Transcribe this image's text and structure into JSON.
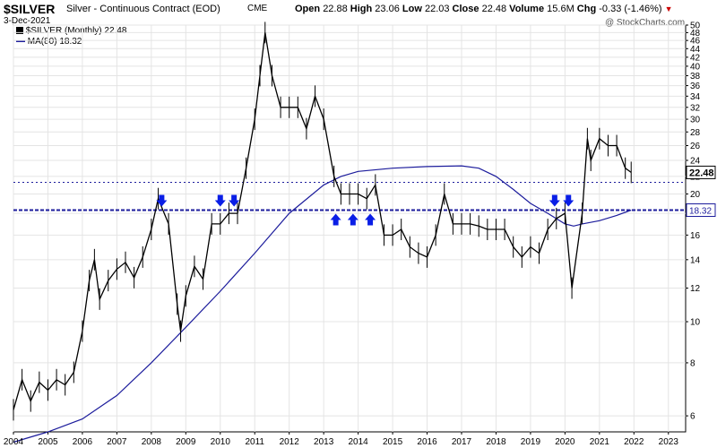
{
  "header": {
    "symbol": "$SILVER",
    "description": "Silver - Continuous Contract (EOD)",
    "exchange": "CME",
    "date": "3-Dec-2021",
    "copyright": "@ StockCharts.com",
    "stats": {
      "open_label": "Open",
      "open": "22.88",
      "high_label": "High",
      "high": "23.06",
      "low_label": "Low",
      "low": "22.03",
      "close_label": "Close",
      "close": "22.48",
      "volume_label": "Volume",
      "volume": "15.6M",
      "chg_label": "Chg",
      "chg": "-0.33 (-1.46%)"
    }
  },
  "legend": {
    "price": "$SILVER (Monthly) 22.48",
    "ma": "MA(80) 18.32"
  },
  "colors": {
    "price": "#000000",
    "ma": "#1c1c9c",
    "arrow": "#0a1ee6",
    "hline": "#1c1c9c",
    "close_tag_bg": "#ffffff",
    "ma_tag_bg": "#ffffff"
  },
  "chart_data": {
    "type": "line",
    "title": "$SILVER",
    "xlabel": "",
    "ylabel": "",
    "y_scale": "log",
    "ylim": [
      5.5,
      50
    ],
    "xlim": [
      2004.0,
      2023.5
    ],
    "x_ticks": [
      "2004",
      "2005",
      "2006",
      "2007",
      "2008",
      "2009",
      "2010",
      "2011",
      "2012",
      "2013",
      "2014",
      "2015",
      "2016",
      "2017",
      "2018",
      "2019",
      "2020",
      "2021",
      "2022",
      "2023"
    ],
    "y_ticks": [
      6,
      8,
      10,
      12,
      14,
      16,
      18,
      20,
      22,
      24,
      26,
      28,
      30,
      32,
      34,
      36,
      38,
      40,
      42,
      44,
      46,
      48,
      50
    ],
    "series": [
      {
        "name": "$SILVER (Monthly)",
        "x": [
          2004.0,
          2004.25,
          2004.5,
          2004.75,
          2005.0,
          2005.25,
          2005.5,
          2005.75,
          2006.0,
          2006.2,
          2006.35,
          2006.5,
          2006.75,
          2007.0,
          2007.25,
          2007.5,
          2007.75,
          2008.0,
          2008.2,
          2008.5,
          2008.75,
          2008.85,
          2009.0,
          2009.25,
          2009.5,
          2009.75,
          2010.0,
          2010.25,
          2010.5,
          2010.75,
          2011.0,
          2011.15,
          2011.3,
          2011.5,
          2011.75,
          2012.0,
          2012.25,
          2012.5,
          2012.75,
          2013.0,
          2013.3,
          2013.5,
          2013.75,
          2014.0,
          2014.25,
          2014.5,
          2014.75,
          2015.0,
          2015.25,
          2015.5,
          2015.75,
          2016.0,
          2016.25,
          2016.5,
          2016.75,
          2017.0,
          2017.25,
          2017.5,
          2017.75,
          2018.0,
          2018.25,
          2018.5,
          2018.75,
          2019.0,
          2019.25,
          2019.5,
          2019.75,
          2020.0,
          2020.2,
          2020.5,
          2020.65,
          2020.75,
          2021.0,
          2021.25,
          2021.5,
          2021.75,
          2021.92
        ],
        "y": [
          6.2,
          7.3,
          6.5,
          7.2,
          6.9,
          7.3,
          7.1,
          7.6,
          9.5,
          12.5,
          14.0,
          11.3,
          12.5,
          13.3,
          13.8,
          12.7,
          14.2,
          16.5,
          19.5,
          17.0,
          11.0,
          9.5,
          11.5,
          13.5,
          12.6,
          17.0,
          17.0,
          18.0,
          18.0,
          23.0,
          30.0,
          38.0,
          48.0,
          38.0,
          32.0,
          32.0,
          32.0,
          28.5,
          34.0,
          30.0,
          22.0,
          20.0,
          20.0,
          20.0,
          19.5,
          21.0,
          16.0,
          16.0,
          16.5,
          15.0,
          14.5,
          14.2,
          16.0,
          20.0,
          17.0,
          17.0,
          17.0,
          16.8,
          16.5,
          16.5,
          16.5,
          15.0,
          14.2,
          15.0,
          14.5,
          16.5,
          17.5,
          18.0,
          12.0,
          18.0,
          27.0,
          24.0,
          27.0,
          26.0,
          26.0,
          23.0,
          22.48
        ]
      },
      {
        "name": "MA(80)",
        "x": [
          2004.0,
          2005.0,
          2006.0,
          2007.0,
          2008.0,
          2009.0,
          2010.0,
          2011.0,
          2012.0,
          2013.0,
          2013.5,
          2014.0,
          2015.0,
          2016.0,
          2017.0,
          2017.5,
          2018.0,
          2018.5,
          2019.0,
          2019.5,
          2020.0,
          2020.25,
          2020.5,
          2021.0,
          2021.5,
          2021.92
        ],
        "y": [
          5.2,
          5.5,
          5.9,
          6.7,
          8.0,
          9.7,
          11.8,
          14.5,
          18.0,
          21.0,
          22.0,
          22.6,
          23.0,
          23.2,
          23.3,
          23.0,
          22.0,
          20.5,
          19.0,
          18.0,
          17.0,
          16.8,
          17.0,
          17.3,
          17.8,
          18.32
        ]
      }
    ],
    "reference_lines": [
      21.3,
      18.32
    ],
    "down_arrows": [
      2008.3,
      2010.0,
      2010.4,
      2019.7,
      2020.1
    ],
    "up_arrows": [
      2013.35,
      2013.85,
      2014.35
    ],
    "labels": {
      "close": "22.48",
      "ma": "18.32"
    },
    "legend_position": "top-left"
  }
}
